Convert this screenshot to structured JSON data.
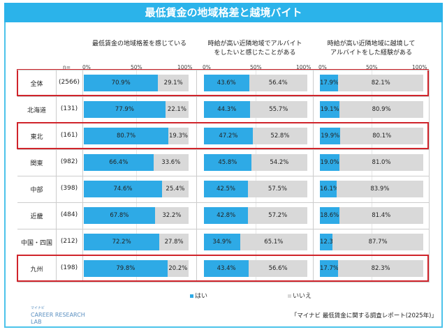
{
  "chart_data": {
    "type": "bar",
    "stacked": true,
    "orientation": "horizontal",
    "title": "最低賃金の地域格差と越境バイト",
    "n_label": "n=",
    "ticks": [
      "0%",
      "50%",
      "100%"
    ],
    "categories": [
      "全体",
      "北海道",
      "東北",
      "関東",
      "中部",
      "近畿",
      "中国・四国",
      "九州"
    ],
    "n": [
      "(2566)",
      "(131)",
      "(161)",
      "(982)",
      "(398)",
      "(484)",
      "(212)",
      "(198)"
    ],
    "highlighted": [
      "全体",
      "東北",
      "九州"
    ],
    "legend": [
      {
        "name": "はい",
        "color": "#2eaae6"
      },
      {
        "name": "いいえ",
        "color": "#d9d9d9"
      }
    ],
    "legend_position": "bottom",
    "panels": [
      {
        "title": [
          "最低賃金の地域格差を感じている"
        ],
        "yes": [
          70.9,
          77.9,
          80.7,
          66.4,
          74.6,
          67.8,
          72.2,
          79.8
        ],
        "no": [
          29.1,
          22.1,
          19.3,
          33.6,
          25.4,
          32.2,
          27.8,
          20.2
        ]
      },
      {
        "title": [
          "時給が高い近隣地域でアルバイト",
          "をしたいと感じたことがある"
        ],
        "yes": [
          43.6,
          44.3,
          47.2,
          45.8,
          42.5,
          42.8,
          34.9,
          43.4
        ],
        "no": [
          56.4,
          55.7,
          52.8,
          54.2,
          57.5,
          57.2,
          65.1,
          56.6
        ]
      },
      {
        "title": [
          "時給が高い近隣地域に越境して",
          "アルバイトをした経験がある"
        ],
        "yes": [
          17.9,
          19.1,
          19.9,
          19.0,
          16.1,
          18.6,
          12.3,
          17.7
        ],
        "no": [
          82.1,
          80.9,
          80.1,
          81.0,
          83.9,
          81.4,
          87.7,
          82.3
        ]
      }
    ]
  },
  "footer": {
    "source": "「マイナビ 最低賃金に関する調査レポート(2025年)」",
    "logo_small": "マイナビ",
    "logo_line1": "CAREER RESEARCH",
    "logo_line2": "LAB"
  }
}
